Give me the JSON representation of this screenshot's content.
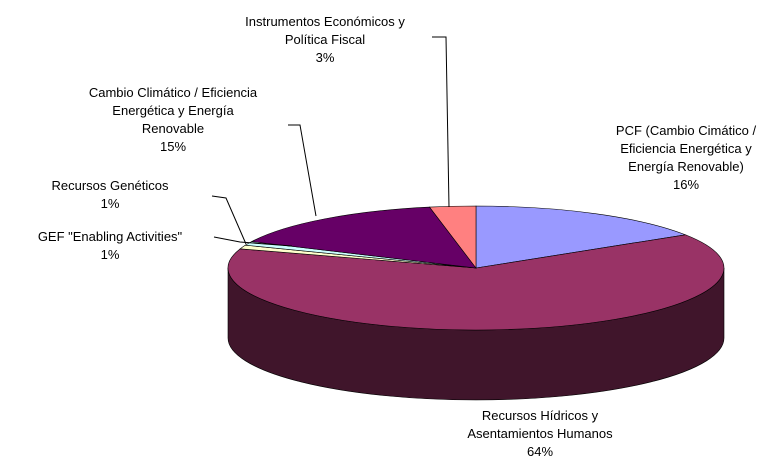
{
  "chart_data": {
    "type": "pie",
    "style": "3d",
    "title": "",
    "slices": [
      {
        "label_lines": [
          "PCF (Cambio Cimático /",
          "Eficiencia Energética y",
          "Energía Renovable)"
        ],
        "percent_label": "16%",
        "value": 16,
        "color": "#9999ff"
      },
      {
        "label_lines": [
          "Recursos Hídricos y",
          "Asentamientos Humanos"
        ],
        "percent_label": "64%",
        "value": 64,
        "color": "#993366"
      },
      {
        "label_lines": [
          "GEF \"Enabling Activities\""
        ],
        "percent_label": "1%",
        "value": 1,
        "color": "#ffffcc"
      },
      {
        "label_lines": [
          "Recursos Genéticos"
        ],
        "percent_label": "1%",
        "value": 1,
        "color": "#ccffff"
      },
      {
        "label_lines": [
          "Cambio Climático / Eficiencia",
          "Energética y Energía",
          "Renovable"
        ],
        "percent_label": "15%",
        "value": 15,
        "color": "#660066"
      },
      {
        "label_lines": [
          "Instrumentos Económicos y",
          "Política Fiscal"
        ],
        "percent_label": "3%",
        "value": 3,
        "color": "#ff8080"
      }
    ]
  }
}
